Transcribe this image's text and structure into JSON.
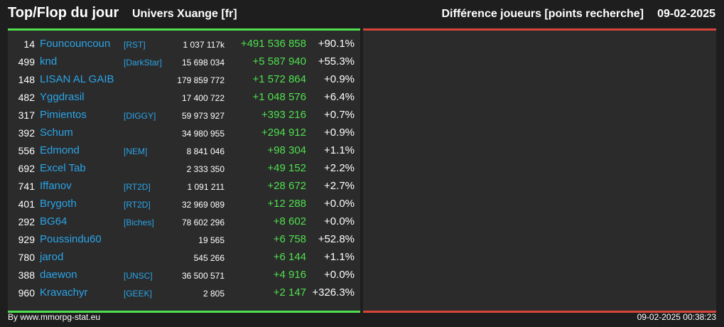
{
  "header": {
    "title": "Top/Flop du jour",
    "subtitle": "Univers Xuange [fr]",
    "right_title": "Différence joueurs [points recherche]",
    "date": "09-02-2025"
  },
  "rows": [
    {
      "rank": "14",
      "name": "Founcouncoun",
      "alliance": "[RST]",
      "points": "1 037 117k",
      "diff": "+491 536 858",
      "pct": "+90.1%"
    },
    {
      "rank": "499",
      "name": "knd",
      "alliance": "[DarkStar]",
      "points": "15 698 034",
      "diff": "+5 587 940",
      "pct": "+55.3%"
    },
    {
      "rank": "148",
      "name": "LISAN AL GAIB",
      "alliance": "",
      "points": "179 859 772",
      "diff": "+1 572 864",
      "pct": "+0.9%"
    },
    {
      "rank": "482",
      "name": "Yggdrasil",
      "alliance": "",
      "points": "17 400 722",
      "diff": "+1 048 576",
      "pct": "+6.4%"
    },
    {
      "rank": "317",
      "name": "Pimientos",
      "alliance": "[DIGGY]",
      "points": "59 973 927",
      "diff": "+393 216",
      "pct": "+0.7%"
    },
    {
      "rank": "392",
      "name": "Schum",
      "alliance": "",
      "points": "34 980 955",
      "diff": "+294 912",
      "pct": "+0.9%"
    },
    {
      "rank": "556",
      "name": "Edmond",
      "alliance": "[NEM]",
      "points": "8 841 046",
      "diff": "+98 304",
      "pct": "+1.1%"
    },
    {
      "rank": "692",
      "name": "Excel Tab",
      "alliance": "",
      "points": "2 333 350",
      "diff": "+49 152",
      "pct": "+2.2%"
    },
    {
      "rank": "741",
      "name": "Iffanov",
      "alliance": "[RT2D]",
      "points": "1 091 211",
      "diff": "+28 672",
      "pct": "+2.7%"
    },
    {
      "rank": "401",
      "name": "Brygoth",
      "alliance": "[RT2D]",
      "points": "32 969 089",
      "diff": "+12 288",
      "pct": "+0.0%"
    },
    {
      "rank": "292",
      "name": "BG64",
      "alliance": "[Biches]",
      "points": "78 602 296",
      "diff": "+8 602",
      "pct": "+0.0%"
    },
    {
      "rank": "929",
      "name": "Poussindu60",
      "alliance": "",
      "points": "19 565",
      "diff": "+6 758",
      "pct": "+52.8%"
    },
    {
      "rank": "780",
      "name": "jarod",
      "alliance": "",
      "points": "545 266",
      "diff": "+6 144",
      "pct": "+1.1%"
    },
    {
      "rank": "388",
      "name": "daewon",
      "alliance": "[UNSC]",
      "points": "36 500 571",
      "diff": "+4 916",
      "pct": "+0.0%"
    },
    {
      "rank": "960",
      "name": "Kravachyr",
      "alliance": "[GEEK]",
      "points": "2 805",
      "diff": "+2 147",
      "pct": "+326.3%"
    }
  ],
  "footer": {
    "left": "By www.mmorpg-stat.eu",
    "right": "09-02-2025 00:38:23"
  },
  "colors": {
    "accent_top": "#4ee04e",
    "accent_flop": "#d9443a",
    "link": "#2ba4e8"
  }
}
